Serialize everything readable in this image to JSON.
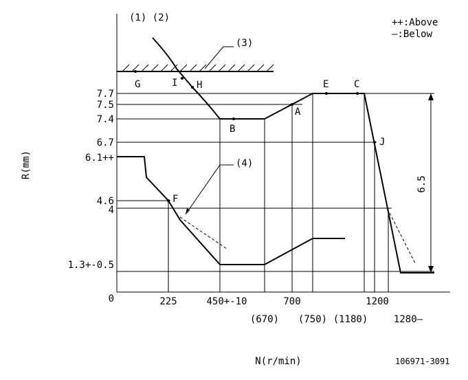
{
  "diagram": {
    "labels_top": {
      "refs12": "(1) (2)",
      "ref3": "(3)",
      "ref4": "(4)"
    },
    "legend": {
      "above": "++:Above",
      "below": "—:Below"
    },
    "y_labels": [
      "7.7",
      "7.5",
      "7.4",
      "6.7",
      "6.1++",
      "4.6",
      "4",
      "1.3+-0.5",
      "0"
    ],
    "x_labels": [
      "225",
      "450+-10",
      "700",
      "1200",
      "1280—"
    ],
    "x_labels_paren": [
      "(670)",
      "(750)",
      "(1180)"
    ],
    "points": [
      "G",
      "I",
      "H",
      "E",
      "C",
      "A",
      "B",
      "J",
      "F"
    ],
    "dimension": "6.5",
    "y_axis_title": "R(mm)",
    "x_axis_title": "N(r/min)",
    "code": "106971-3091"
  }
}
